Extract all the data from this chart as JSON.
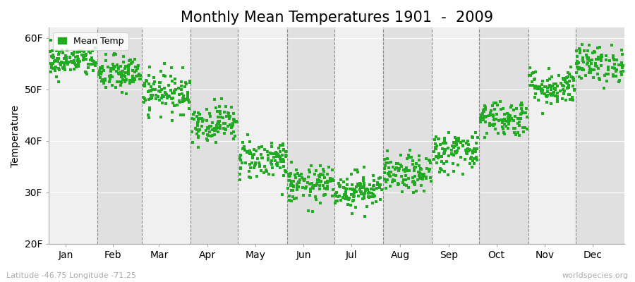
{
  "title": "Monthly Mean Temperatures 1901  -  2009",
  "ylabel": "Temperature",
  "ylim": [
    20,
    62
  ],
  "yticks": [
    20,
    30,
    40,
    50,
    60
  ],
  "ytick_labels": [
    "20F",
    "30F",
    "40F",
    "50F",
    "60F"
  ],
  "months": [
    "Jan",
    "Feb",
    "Mar",
    "Apr",
    "May",
    "Jun",
    "Jul",
    "Aug",
    "Sep",
    "Oct",
    "Nov",
    "Dec"
  ],
  "month_days": [
    31,
    28,
    31,
    30,
    31,
    30,
    31,
    31,
    30,
    31,
    30,
    31
  ],
  "monthly_means": [
    55.5,
    53.0,
    49.5,
    43.5,
    36.5,
    31.5,
    30.5,
    33.5,
    38.0,
    44.5,
    50.5,
    55.0
  ],
  "monthly_stds": [
    1.5,
    1.8,
    2.0,
    1.8,
    2.0,
    1.8,
    1.8,
    1.8,
    2.0,
    1.8,
    1.8,
    1.8
  ],
  "n_years": 109,
  "dot_color": "#22AA22",
  "dot_size": 5,
  "background_color": "#FFFFFF",
  "plot_bg_color_light": "#F0F0F0",
  "plot_bg_color_dark": "#E0E0E0",
  "grid_color": "#888888",
  "title_fontsize": 15,
  "axis_label_fontsize": 10,
  "tick_fontsize": 10,
  "legend_label": "Mean Temp",
  "bottom_left_text": "Latitude -46.75 Longitude -71.25",
  "bottom_right_text": "worldspecies.org",
  "seed": 42
}
